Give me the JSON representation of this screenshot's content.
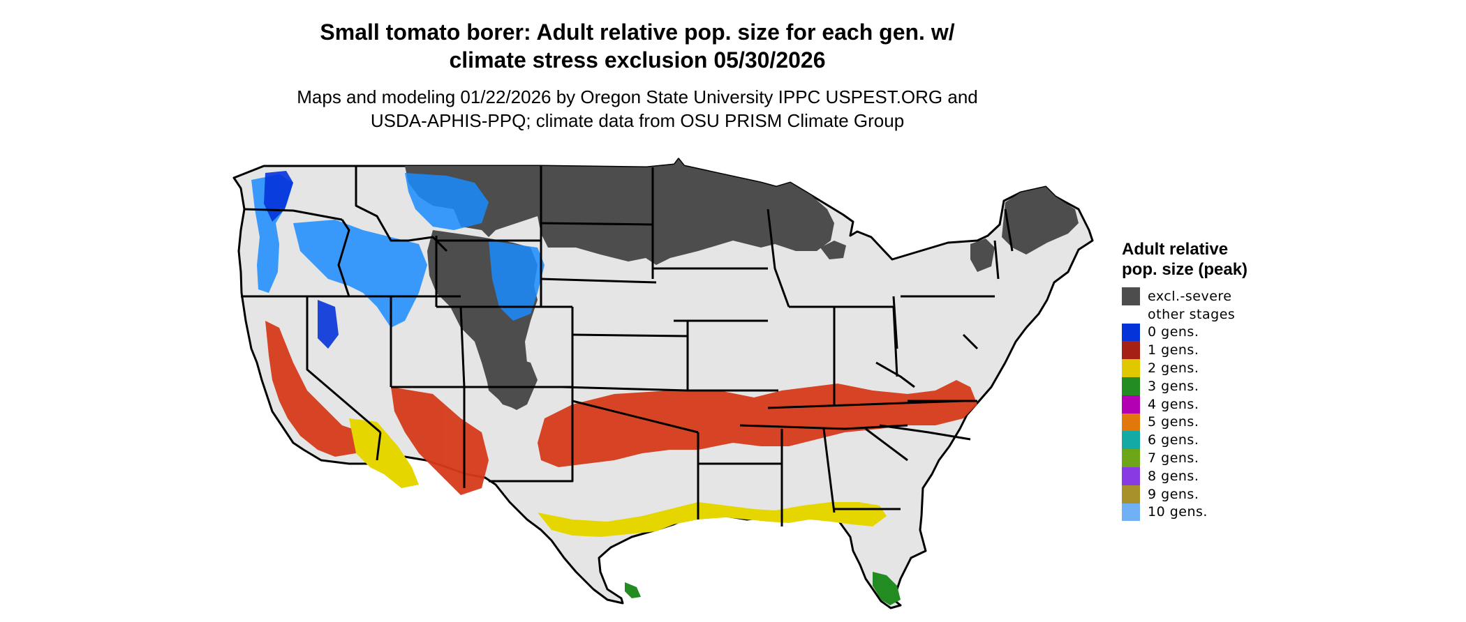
{
  "header": {
    "title_line1": "Small tomato borer: Adult relative pop. size for each gen. w/",
    "title_line2": "climate stress exclusion 05/30/2026",
    "subtitle_line1": "Maps and modeling 01/22/2026 by Oregon State University IPPC USPEST.ORG and",
    "subtitle_line2": "USDA-APHIS-PPQ; climate data from OSU PRISM Climate Group"
  },
  "legend": {
    "title": "Adult relative pop. size (peak)",
    "items": [
      {
        "label": "excl.-severe",
        "color": "#4d4d4d"
      },
      {
        "label": "other stages",
        "color": "#ffffff"
      },
      {
        "label": "0 gens.",
        "color": "#0433d9"
      },
      {
        "label": "1 gens.",
        "color": "#a52115"
      },
      {
        "label": "2 gens.",
        "color": "#e0c800"
      },
      {
        "label": "3 gens.",
        "color": "#228b22"
      },
      {
        "label": "4 gens.",
        "color": "#b300b3"
      },
      {
        "label": "5 gens.",
        "color": "#e0780a"
      },
      {
        "label": "6 gens.",
        "color": "#13aaa5"
      },
      {
        "label": "7 gens.",
        "color": "#6ca515"
      },
      {
        "label": "8 gens.",
        "color": "#8a3ae3"
      },
      {
        "label": "9 gens.",
        "color": "#a8902a"
      },
      {
        "label": "10 gens.",
        "color": "#70b0f5"
      }
    ]
  },
  "map": {
    "land_color": "#e5e5e5",
    "border_color": "#000000"
  }
}
